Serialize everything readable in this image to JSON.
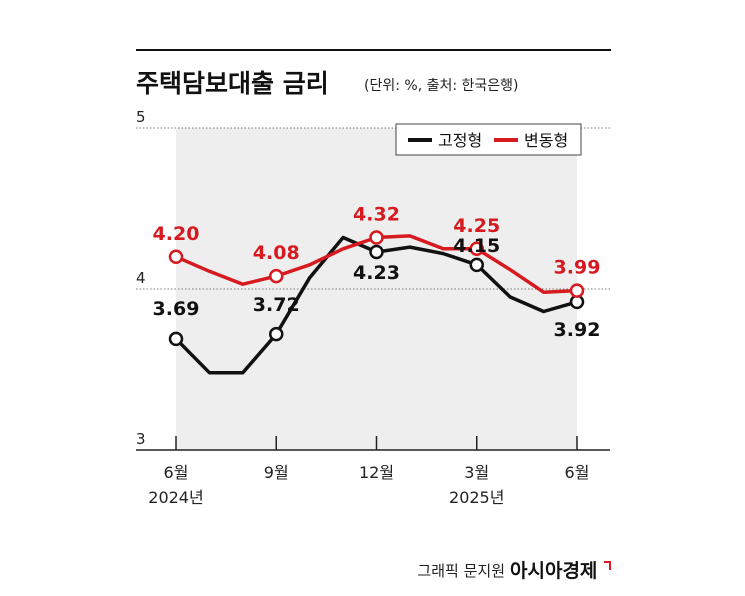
{
  "header": {
    "title": "주택담보대출 금리",
    "subtitle": "(단위: %, 출처: 한국은행)"
  },
  "footer": {
    "credit": "그래픽 문지원",
    "brand": "아시아경제"
  },
  "chart_data": {
    "type": "line",
    "title": "주택담보대출 금리",
    "subtitle": "(단위: %, 출처: 한국은행)",
    "xlabel": "",
    "ylabel": "",
    "ylim": [
      3,
      5
    ],
    "y_ticks": [
      "5",
      "4",
      "3"
    ],
    "x_tick_labels": [
      {
        "month": "6월",
        "year": "2024년"
      },
      {
        "month": "9월",
        "year": ""
      },
      {
        "month": "12월",
        "year": ""
      },
      {
        "month": "3월",
        "year": "2025년"
      },
      {
        "month": "6월",
        "year": ""
      }
    ],
    "x": [
      "2024-06",
      "2024-07",
      "2024-08",
      "2024-09",
      "2024-10",
      "2024-11",
      "2024-12",
      "2025-01",
      "2025-02",
      "2025-03",
      "2025-04",
      "2025-05",
      "2025-06"
    ],
    "series": [
      {
        "name": "고정형",
        "color": "#111111",
        "values": [
          3.69,
          3.48,
          3.48,
          3.72,
          4.07,
          4.32,
          4.23,
          4.26,
          4.22,
          4.15,
          3.95,
          3.86,
          3.92
        ],
        "labeled_points": [
          {
            "index": 0,
            "label": "3.69"
          },
          {
            "index": 3,
            "label": "3.72"
          },
          {
            "index": 6,
            "label": "4.23"
          },
          {
            "index": 9,
            "label": "4.15"
          },
          {
            "index": 12,
            "label": "3.92"
          }
        ]
      },
      {
        "name": "변동형",
        "color": "#d71920",
        "values": [
          4.2,
          4.11,
          4.03,
          4.08,
          4.15,
          4.25,
          4.32,
          4.33,
          4.25,
          4.25,
          4.12,
          3.98,
          3.99
        ],
        "labeled_points": [
          {
            "index": 0,
            "label": "4.20"
          },
          {
            "index": 3,
            "label": "4.08"
          },
          {
            "index": 6,
            "label": "4.32"
          },
          {
            "index": 9,
            "label": "4.25"
          },
          {
            "index": 12,
            "label": "3.99"
          }
        ]
      }
    ],
    "legend": {
      "placement": "top-right"
    },
    "grid": "dotted"
  }
}
